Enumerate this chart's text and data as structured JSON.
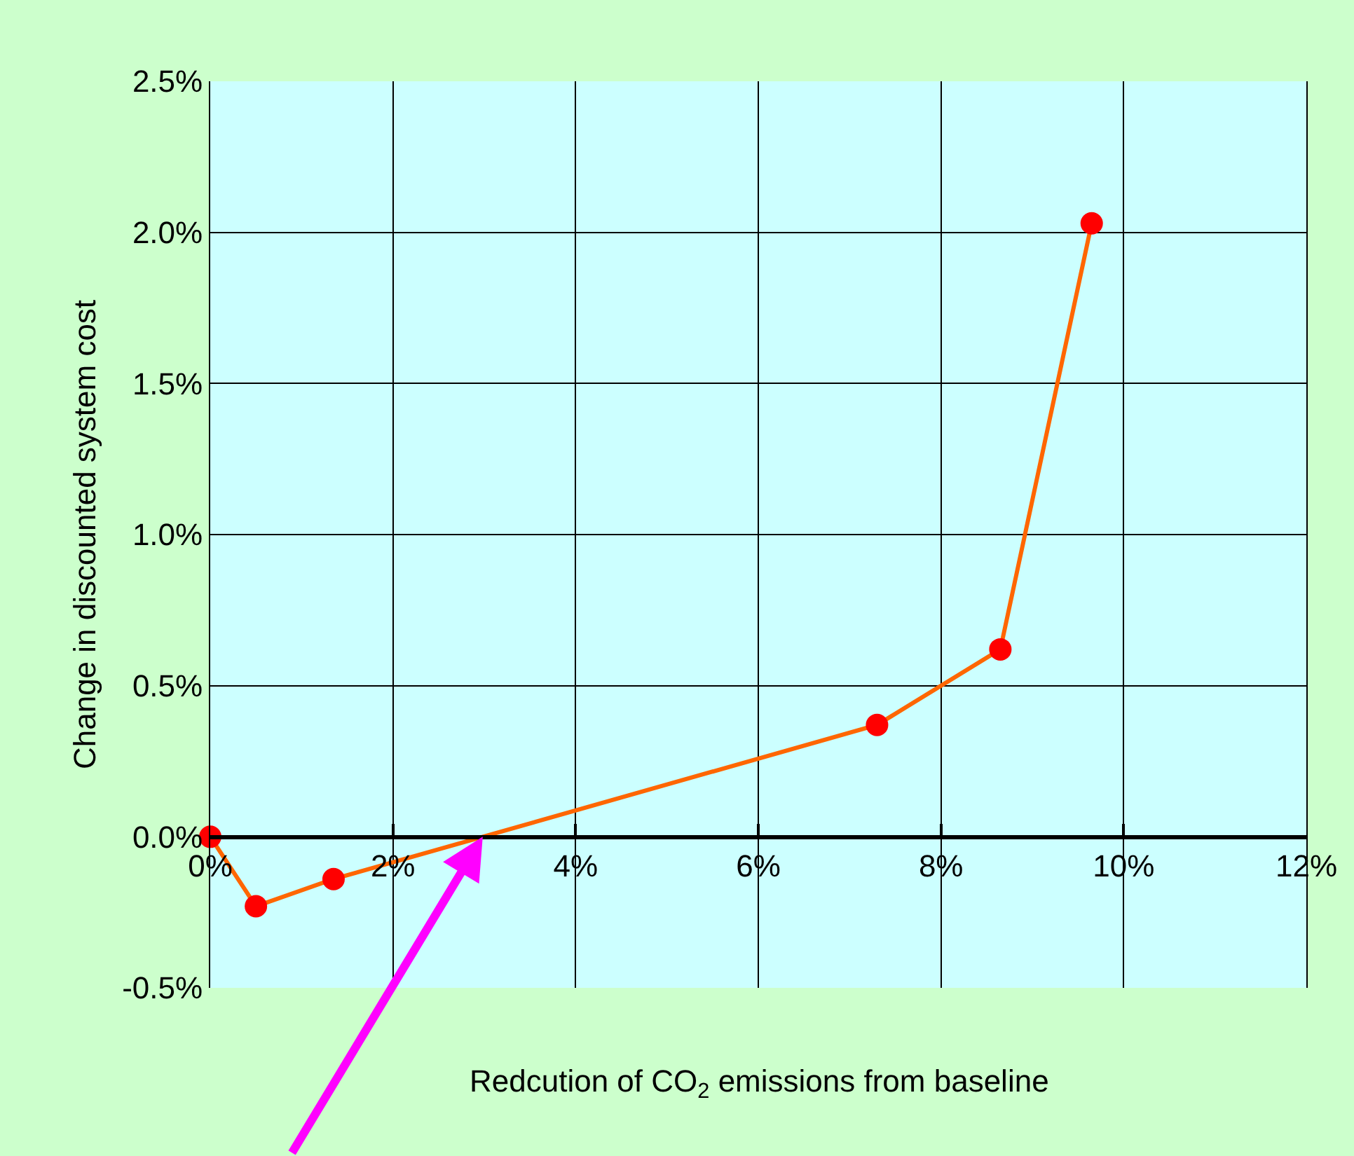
{
  "chart_data": {
    "type": "line",
    "xlabel": "Redcution of CO$_{2}$ emissions from baseline",
    "ylabel": "Change in discounted system cost",
    "x": [
      0,
      0.5,
      1.35,
      7.3,
      8.65,
      9.65
    ],
    "series": [
      {
        "color": "#ff6600",
        "colors": [
          "#ff0000",
          "#ff0000",
          "#ff0000",
          "#ff0000",
          "#ff0000",
          "#ff0000"
        ],
        "values": [
          0,
          -0.23,
          -0.14,
          0.37,
          0.62,
          2.03
        ]
      }
    ],
    "marker": "circle",
    "line_style": "solid",
    "grid": true,
    "xlim": [
      0,
      12
    ],
    "xticks": [
      {
        "value": 0,
        "label": "0%"
      },
      {
        "value": 2,
        "label": "2%"
      },
      {
        "value": 4,
        "label": "4%"
      },
      {
        "value": 6,
        "label": "6%"
      },
      {
        "value": 8,
        "label": "8%"
      },
      {
        "value": 10,
        "label": "10%"
      },
      {
        "value": 12,
        "label": "12%"
      }
    ],
    "ylim": [
      -0.5,
      2.5
    ],
    "yticks": [
      {
        "value": -0.5,
        "label": "-0.5%"
      },
      {
        "value": 0,
        "label": "0.0%"
      },
      {
        "value": 0.5,
        "label": "0.5%"
      },
      {
        "value": 1,
        "label": "1.0%"
      },
      {
        "value": 1.5,
        "label": "1.5%"
      },
      {
        "value": 2,
        "label": "2.0%"
      },
      {
        "value": 2.5,
        "label": "2.5%"
      }
    ]
  }
}
